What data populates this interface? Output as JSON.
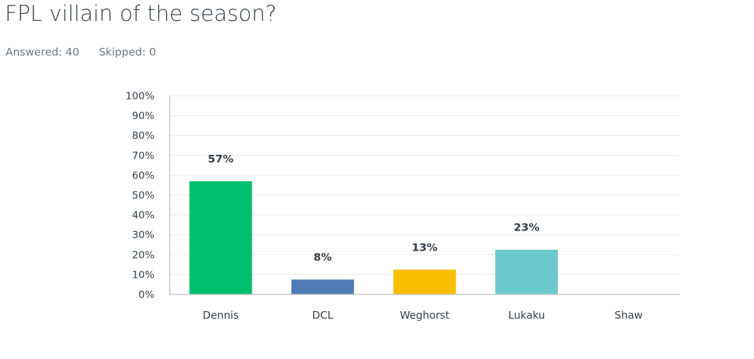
{
  "question": {
    "title": "FPL villain of the season?",
    "answered_label": "Answered:",
    "answered_count": "40",
    "skipped_label": "Skipped:",
    "skipped_count": "0"
  },
  "chart_data": {
    "type": "bar",
    "title": "",
    "xlabel": "",
    "ylabel": "",
    "categories": [
      "Dennis",
      "DCL",
      "Weghorst",
      "Lukaku",
      "Shaw"
    ],
    "values": [
      57,
      8,
      13,
      23,
      0
    ],
    "data_labels": [
      "57%",
      "8%",
      "13%",
      "23%",
      ""
    ],
    "bar_display_values": [
      57,
      7.5,
      12.5,
      22.5,
      0
    ],
    "colors": [
      "#00bf6f",
      "#507cb6",
      "#f9be00",
      "#6bc8cd",
      "#ff8b4f"
    ],
    "ylim": [
      0,
      100
    ],
    "yticks": [
      0,
      10,
      20,
      30,
      40,
      50,
      60,
      70,
      80,
      90,
      100
    ],
    "ytick_labels": [
      "0%",
      "10%",
      "20%",
      "30%",
      "40%",
      "50%",
      "60%",
      "70%",
      "80%",
      "90%",
      "100%"
    ],
    "grid": true,
    "legend": "none"
  }
}
